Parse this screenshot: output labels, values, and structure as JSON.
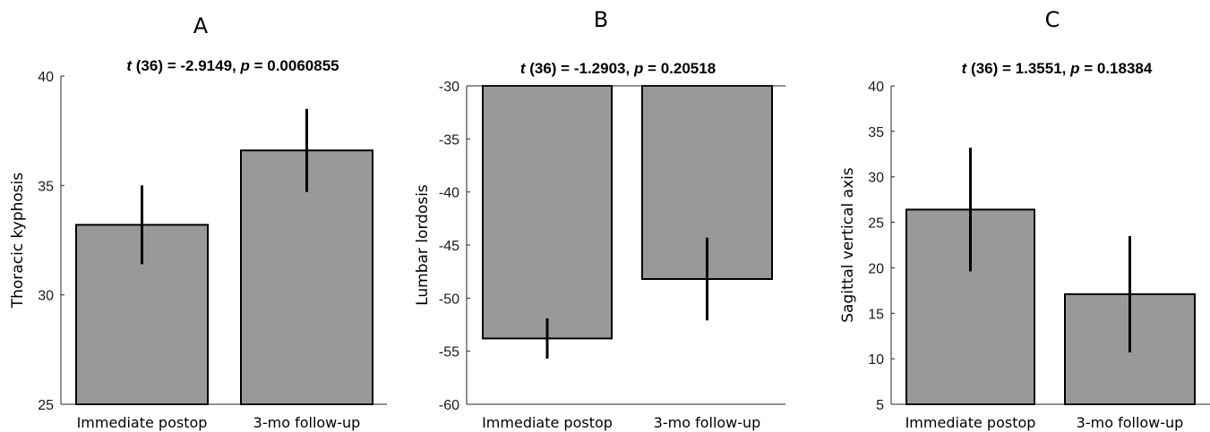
{
  "chart_data": [
    {
      "type": "bar",
      "panel_label": "A",
      "title_t": "t",
      "title_df": " (36) =  -2.9149, ",
      "title_p": "p",
      "title_pval": " = 0.0060855",
      "ylabel": "Thoracic kyphosis",
      "xlabel": "",
      "categories": [
        "Immediate postop",
        "3-mo follow-up"
      ],
      "values": [
        33.2,
        36.6
      ],
      "errors": [
        1.8,
        1.9
      ],
      "ylim": [
        25,
        40
      ],
      "yticks": [
        25,
        30,
        35,
        40
      ],
      "bar_color": "#999999",
      "grid": false,
      "baseline": 25
    },
    {
      "type": "bar",
      "panel_label": "B",
      "title_t": "t",
      "title_df": " (36) = -1.2903, ",
      "title_p": "p",
      "title_pval": " = 0.20518",
      "ylabel": "Lumbar lordosis",
      "xlabel": "",
      "categories": [
        "Immediate postop",
        "3-mo follow-up"
      ],
      "values": [
        -53.8,
        -48.2
      ],
      "errors": [
        1.9,
        3.9
      ],
      "ylim": [
        -60,
        -30
      ],
      "yticks": [
        -60,
        -55,
        -50,
        -45,
        -40,
        -35,
        -30
      ],
      "bar_color": "#999999",
      "grid": false,
      "baseline": -30
    },
    {
      "type": "bar",
      "panel_label": "C",
      "title_t": "t",
      "title_df": " (36) = 1.3551, ",
      "title_p": "p",
      "title_pval": " = 0.18384",
      "ylabel": "Sagittal vertical axis",
      "xlabel": "",
      "categories": [
        "Immediate postop",
        "3-mo follow-up"
      ],
      "values": [
        26.4,
        17.1
      ],
      "errors": [
        6.8,
        6.4
      ],
      "ylim": [
        5,
        40
      ],
      "yticks": [
        5,
        10,
        15,
        20,
        25,
        30,
        35,
        40
      ],
      "bar_color": "#999999",
      "grid": false,
      "baseline": 5
    }
  ]
}
